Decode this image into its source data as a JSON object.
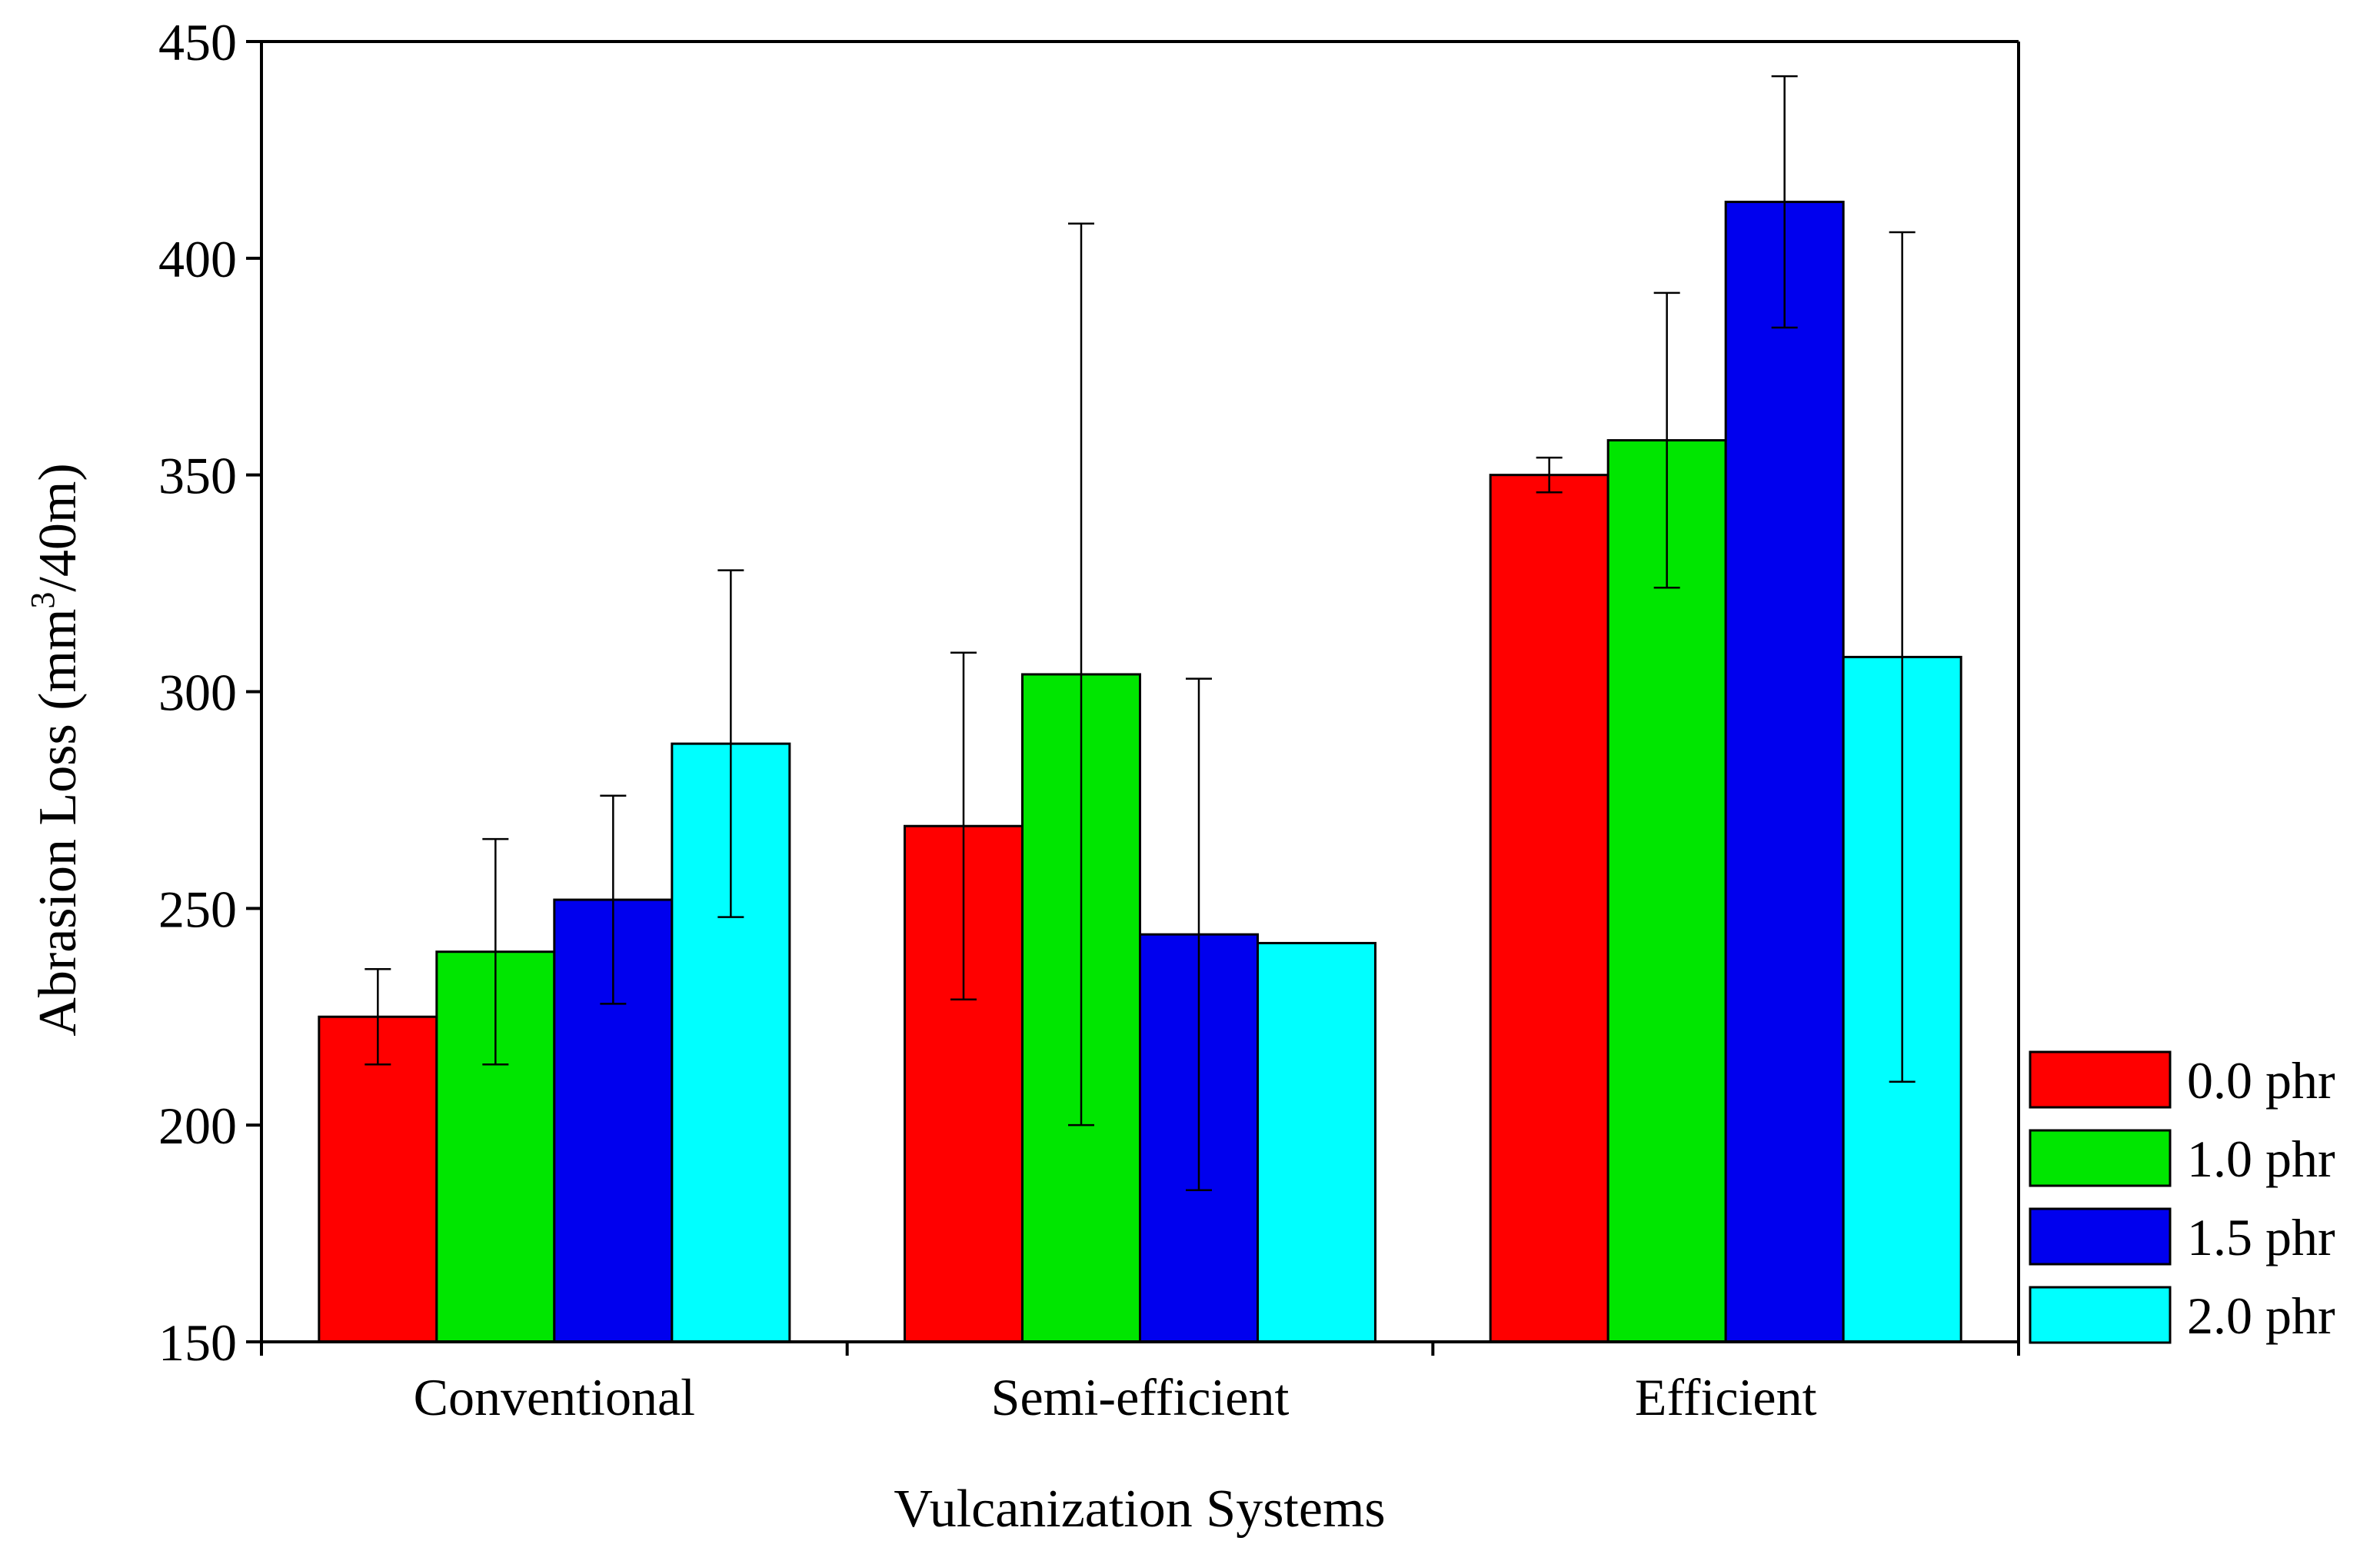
{
  "chart_data": {
    "type": "bar",
    "title": "",
    "xlabel": "Vulcanization Systems",
    "ylabel": {
      "main": "Abrasion Loss (mm",
      "superscript": "3",
      "suffix": "/40m)"
    },
    "ylim": [
      150,
      450
    ],
    "yticks": [
      "150",
      "200",
      "250",
      "300",
      "350",
      "400",
      "450"
    ],
    "categories": [
      "Conventional",
      "Semi-efficient",
      "Efficient"
    ],
    "series": [
      {
        "name": "0.0 phr",
        "color": "#ff0000",
        "values": [
          225,
          269,
          350
        ],
        "errors": [
          [
            214,
            236
          ],
          [
            229,
            309
          ],
          [
            346,
            354
          ]
        ]
      },
      {
        "name": "1.0 phr",
        "color": "#00e600",
        "values": [
          240,
          304,
          358
        ],
        "errors": [
          [
            214,
            266
          ],
          [
            200,
            408
          ],
          [
            324,
            392
          ]
        ]
      },
      {
        "name": "1.5 phr",
        "color": "#0000ee",
        "values": [
          252,
          244,
          413
        ],
        "errors": [
          [
            228,
            276
          ],
          [
            185,
            303
          ],
          [
            384,
            442
          ]
        ]
      },
      {
        "name": "2.0 phr",
        "color": "#00ffff",
        "values": [
          288,
          242,
          308
        ],
        "errors": [
          [
            248,
            328
          ],
          null,
          [
            210,
            406
          ]
        ]
      }
    ],
    "legend_position": "bottom-right",
    "grid": false
  }
}
